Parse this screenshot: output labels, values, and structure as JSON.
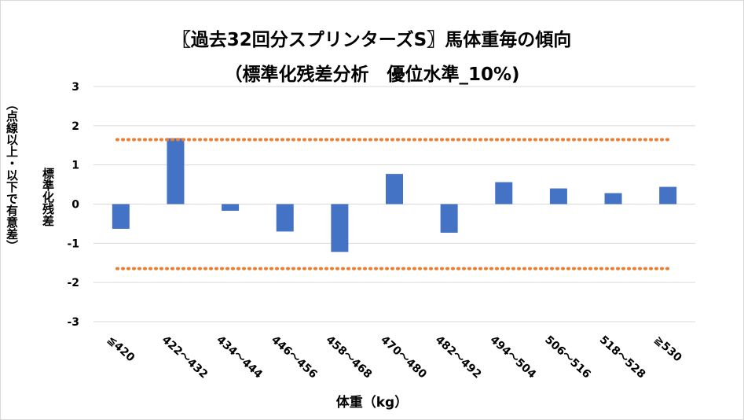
{
  "chart_data": {
    "type": "bar",
    "title_line1": "〖過去32回分スプリンターズS〗馬体重毎の傾向",
    "title_line2": "（標準化残差分析　優位水準_10%)",
    "ylabel_main": "標準化残差",
    "ylabel_note": "（点線以上・以下で有意差）",
    "xlabel": "体重（kg）",
    "categories": [
      "≦420",
      "422～432",
      "434～444",
      "446～456",
      "458～468",
      "470～480",
      "482～492",
      "494～504",
      "506～516",
      "518～528",
      "≧530"
    ],
    "values": [
      -0.63,
      1.68,
      -0.17,
      -0.7,
      -1.22,
      0.77,
      -0.73,
      0.56,
      0.4,
      0.28,
      0.44
    ],
    "ylim": [
      -3,
      3
    ],
    "yticks": [
      3,
      2,
      1,
      0,
      -1,
      -2,
      -3
    ],
    "threshold_lines": [
      1.645,
      -1.645
    ],
    "bar_color": "#4472c4",
    "threshold_color": "#ed7d31",
    "grid": true
  }
}
